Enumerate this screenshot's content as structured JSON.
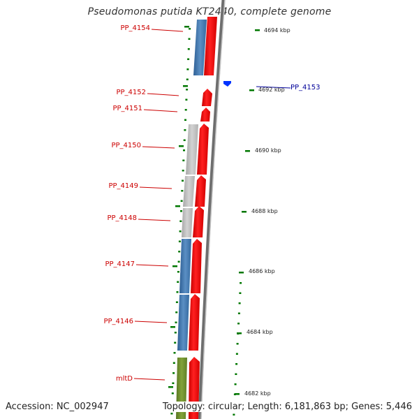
{
  "title": "Pseudomonas putida KT2440, complete genome",
  "footer": {
    "accession": "Accession: NC_002947",
    "topology": "Topology: circular; Length: 6,181,863 bp; Genes: 5,446"
  },
  "colors": {
    "forward_cds": "#ff0000",
    "gene_label": "#cc0000",
    "reverse_label": "#000099",
    "reverse_cds": "#0033ff",
    "ruler_ticks": "#007700",
    "cog_blue": "#4a7fb5",
    "cog_gray": "#bdbdbd",
    "cog_green": "#6e8f2a"
  },
  "ruler_labels": [
    "4694 kbp",
    "4692 kbp",
    "4690 kbp",
    "4688 kbp",
    "4686 kbp",
    "4684 kbp",
    "4682 kbp"
  ],
  "forward_genes": [
    "PP_4154",
    "PP_4152",
    "PP_4151",
    "PP_4150",
    "PP_4149",
    "PP_4148",
    "PP_4147",
    "PP_4146",
    "mltD"
  ],
  "reverse_genes": [
    "PP_4153"
  ]
}
